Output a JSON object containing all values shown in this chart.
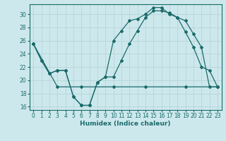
{
  "xlabel": "Humidex (Indice chaleur)",
  "xlim": [
    -0.5,
    23.5
  ],
  "ylim": [
    15.5,
    31.5
  ],
  "xticks": [
    0,
    1,
    2,
    3,
    4,
    5,
    6,
    7,
    8,
    9,
    10,
    11,
    12,
    13,
    14,
    15,
    16,
    17,
    18,
    19,
    20,
    21,
    22,
    23
  ],
  "yticks": [
    16,
    18,
    20,
    22,
    24,
    26,
    28,
    30
  ],
  "bg_color": "#cde8ec",
  "line_color": "#1a6b6b",
  "grid_color": "#b8d8dc",
  "line1_x": [
    0,
    1,
    2,
    3,
    4,
    5,
    6,
    7,
    8,
    9,
    10,
    11,
    12,
    13,
    14,
    15,
    16,
    17,
    18,
    19,
    20,
    21,
    22,
    23
  ],
  "line1_y": [
    25.5,
    23.0,
    21.0,
    21.5,
    21.5,
    17.5,
    16.2,
    16.2,
    19.7,
    20.5,
    20.5,
    23.0,
    25.5,
    27.5,
    29.5,
    30.5,
    30.5,
    30.2,
    29.5,
    27.3,
    25.0,
    22.0,
    21.5,
    19.0
  ],
  "line2_x": [
    0,
    1,
    2,
    3,
    4,
    5,
    6,
    7,
    8,
    9,
    10,
    11,
    12,
    13,
    14,
    15,
    16,
    17,
    18,
    19,
    20,
    21,
    22,
    23
  ],
  "line2_y": [
    25.5,
    23.0,
    21.0,
    21.5,
    21.5,
    17.5,
    16.2,
    16.2,
    19.7,
    20.5,
    26.0,
    27.5,
    29.0,
    29.3,
    30.0,
    31.0,
    31.0,
    30.0,
    29.5,
    29.0,
    27.0,
    25.0,
    19.0,
    19.0
  ],
  "line3_x": [
    0,
    3,
    6,
    10,
    14,
    19,
    23
  ],
  "line3_y": [
    25.5,
    19.0,
    19.0,
    19.0,
    19.0,
    19.0,
    19.0
  ]
}
